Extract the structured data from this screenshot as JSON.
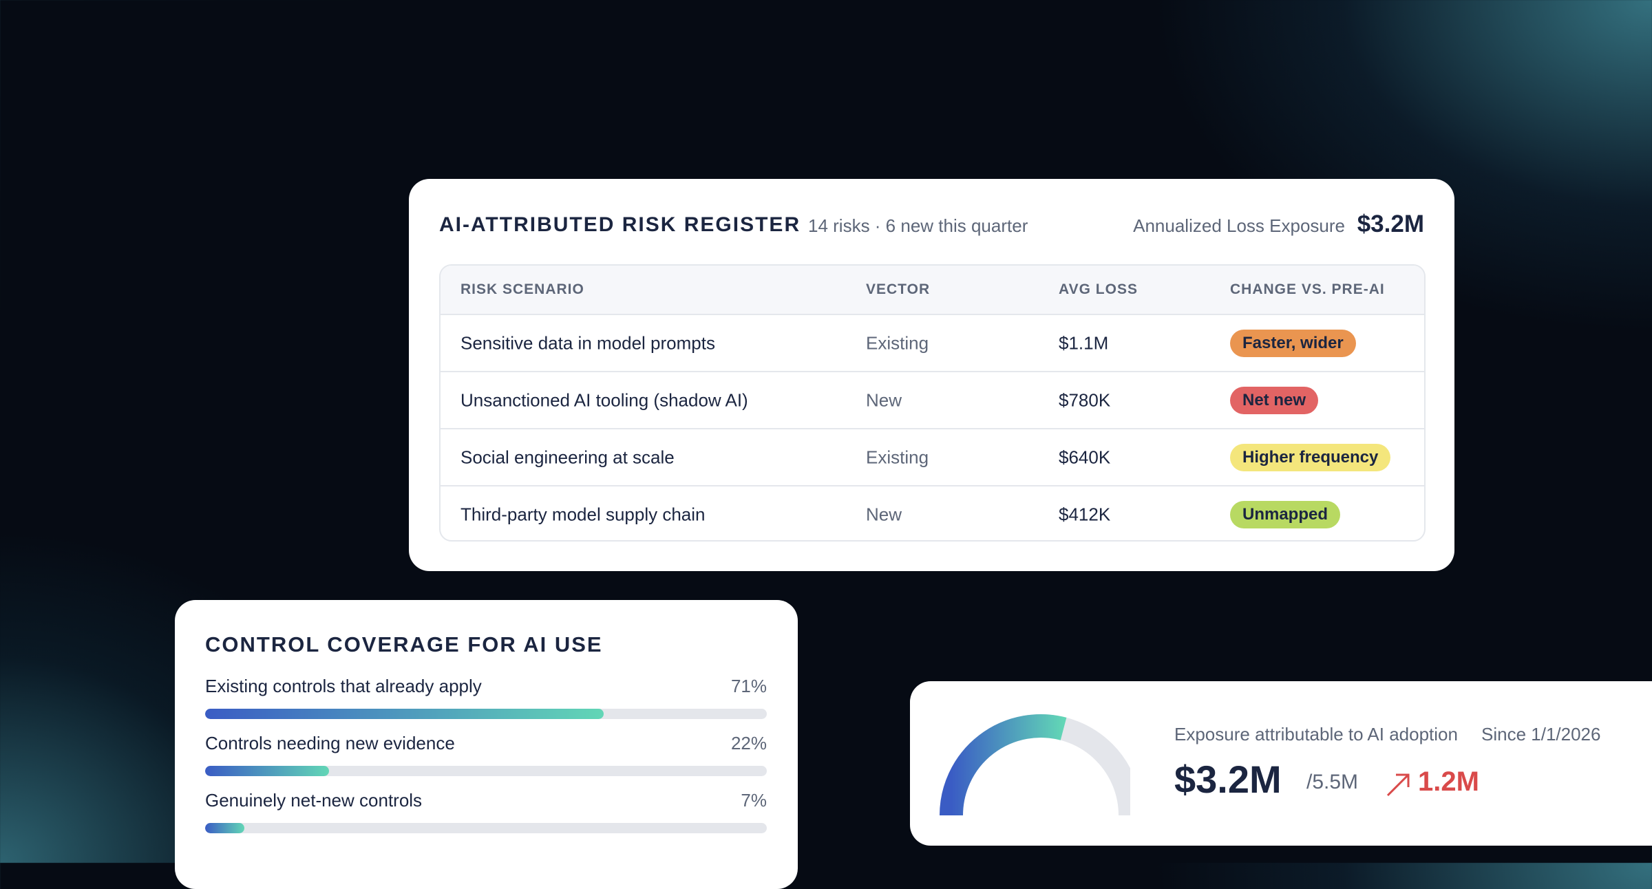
{
  "register": {
    "title": "AI-ATTRIBUTED RISK REGISTER",
    "subtitle": "14 risks · 6 new this quarter",
    "exposure_label": "Annualized Loss Exposure",
    "exposure_value": "$3.2M",
    "columns": [
      "RISK SCENARIO",
      "VECTOR",
      "AVG LOSS",
      "CHANGE VS. PRE-AI"
    ],
    "rows": [
      {
        "scenario": "Sensitive data in model prompts",
        "vector": "Existing",
        "avg_loss": "$1.1M",
        "change": "Faster, wider",
        "change_color": "#ea9550"
      },
      {
        "scenario": "Unsanctioned AI tooling (shadow AI)",
        "vector": "New",
        "avg_loss": "$780K",
        "change": "Net new",
        "change_color": "#e26464"
      },
      {
        "scenario": "Social engineering at scale",
        "vector": "Existing",
        "avg_loss": "$640K",
        "change": "Higher frequency",
        "change_color": "#f4e67c"
      },
      {
        "scenario": "Third-party model supply chain",
        "vector": "New",
        "avg_loss": "$412K",
        "change": "Unmapped",
        "change_color": "#b8d962"
      }
    ]
  },
  "coverage": {
    "title": "CONTROL COVERAGE FOR AI USE",
    "xlim": [
      0,
      100
    ],
    "items": [
      {
        "label": "Existing controls that already apply",
        "value": 71,
        "value_label": "71%"
      },
      {
        "label": "Controls needing new evidence",
        "value": 22,
        "value_label": "22%"
      },
      {
        "label": "Genuinely net-new controls",
        "value": 7,
        "value_label": "7%"
      }
    ]
  },
  "gauge": {
    "label": "Exposure attributable to AI adoption",
    "since": "Since 1/1/2026",
    "value": 3.2,
    "value_label": "$3.2M",
    "max": 5.5,
    "max_label": "/5.5M",
    "change": "1.2M"
  }
}
